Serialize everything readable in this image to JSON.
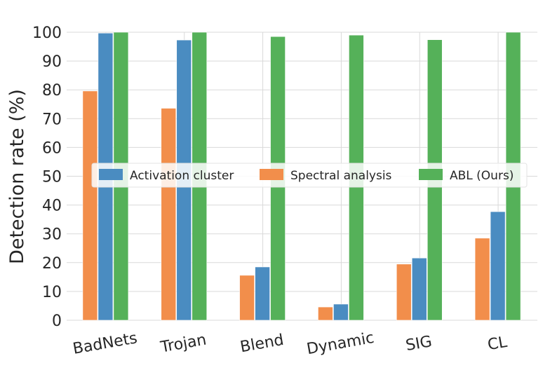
{
  "chart_data": {
    "type": "bar",
    "title": "",
    "xlabel": "",
    "ylabel": "Detection rate (%)",
    "ylim": [
      0,
      100
    ],
    "yticks": [
      0,
      10,
      20,
      30,
      40,
      50,
      60,
      70,
      80,
      90,
      100
    ],
    "grid": true,
    "legend_position": "center",
    "categories": [
      "BadNets",
      "Trojan",
      "Blend",
      "Dynamic",
      "SIG",
      "CL"
    ],
    "series": [
      {
        "name": "Spectral analysis",
        "color": "#f28e4b",
        "values": [
          79.6,
          73.6,
          15.6,
          4.6,
          19.5,
          28.5
        ]
      },
      {
        "name": "Activation cluster",
        "color": "#4a8cc1",
        "values": [
          99.7,
          97.3,
          18.5,
          5.6,
          21.6,
          37.7
        ]
      },
      {
        "name": "ABL (Ours)",
        "color": "#55b159",
        "values": [
          100,
          100,
          98.5,
          99.0,
          97.4,
          100
        ]
      }
    ],
    "legend_order": [
      "Activation cluster",
      "Spectral analysis",
      "ABL (Ours)"
    ]
  }
}
